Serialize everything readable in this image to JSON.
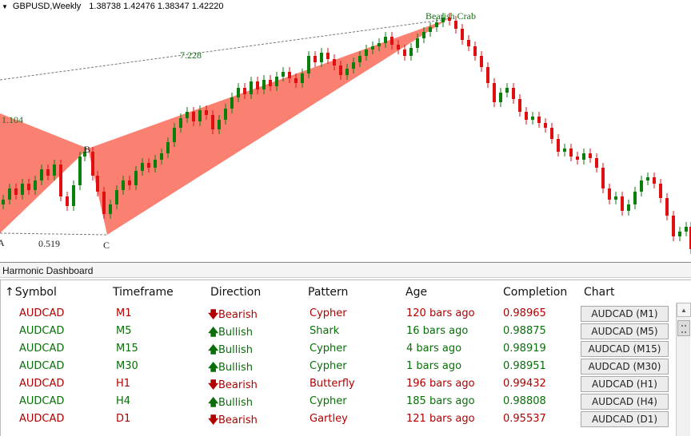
{
  "chart": {
    "symbol_tf": "GBPUSD,Weekly",
    "ohlc": "1.38738 1.42476 1.38347 1.42220",
    "pattern_label": "Bearish Crab",
    "ratio_xa": "1.104",
    "ratio_xd": "7.228",
    "ratio_bc": "0.519",
    "point_a": "A",
    "point_b": "B",
    "point_c": "C",
    "colors": {
      "bull": "#0b7f0b",
      "bear": "#e01010",
      "fill": "#fa8072",
      "dash": "#777777"
    }
  },
  "dashboard": {
    "title": "Harmonic Dashboard",
    "sort_icon": "up-arrow-icon",
    "columns": [
      "Symbol",
      "Timeframe",
      "Direction",
      "Pattern",
      "Age",
      "Completion",
      "Chart"
    ],
    "rows": [
      {
        "symbol": "AUDCAD",
        "timeframe": "M1",
        "dir_arrow": "🡇",
        "direction": "Bearish",
        "pattern": "Cypher",
        "age": "120 bars ago",
        "completion": "0.98965",
        "chart_btn": "AUDCAD (M1)",
        "bullish": false
      },
      {
        "symbol": "AUDCAD",
        "timeframe": "M5",
        "dir_arrow": "🡅",
        "direction": "Bullish",
        "pattern": "Shark",
        "age": "16 bars ago",
        "completion": "0.98875",
        "chart_btn": "AUDCAD (M5)",
        "bullish": true
      },
      {
        "symbol": "AUDCAD",
        "timeframe": "M15",
        "dir_arrow": "🡅",
        "direction": "Bullish",
        "pattern": "Cypher",
        "age": "4 bars ago",
        "completion": "0.98919",
        "chart_btn": "AUDCAD (M15)",
        "bullish": true
      },
      {
        "symbol": "AUDCAD",
        "timeframe": "M30",
        "dir_arrow": "🡅",
        "direction": "Bullish",
        "pattern": "Cypher",
        "age": "1 bars ago",
        "completion": "0.98951",
        "chart_btn": "AUDCAD (M30)",
        "bullish": true
      },
      {
        "symbol": "AUDCAD",
        "timeframe": "H1",
        "dir_arrow": "🡇",
        "direction": "Bearish",
        "pattern": "Butterfly",
        "age": "196 bars ago",
        "completion": "0.99432",
        "chart_btn": "AUDCAD (H1)",
        "bullish": false
      },
      {
        "symbol": "AUDCAD",
        "timeframe": "H4",
        "dir_arrow": "🡅",
        "direction": "Bullish",
        "pattern": "Cypher",
        "age": "185 bars ago",
        "completion": "0.98808",
        "chart_btn": "AUDCAD (H4)",
        "bullish": true
      },
      {
        "symbol": "AUDCAD",
        "timeframe": "D1",
        "dir_arrow": "🡇",
        "direction": "Bearish",
        "pattern": "Gartley",
        "age": "121 bars ago",
        "completion": "0.95537",
        "chart_btn": "AUDCAD (D1)",
        "bullish": false
      }
    ]
  }
}
